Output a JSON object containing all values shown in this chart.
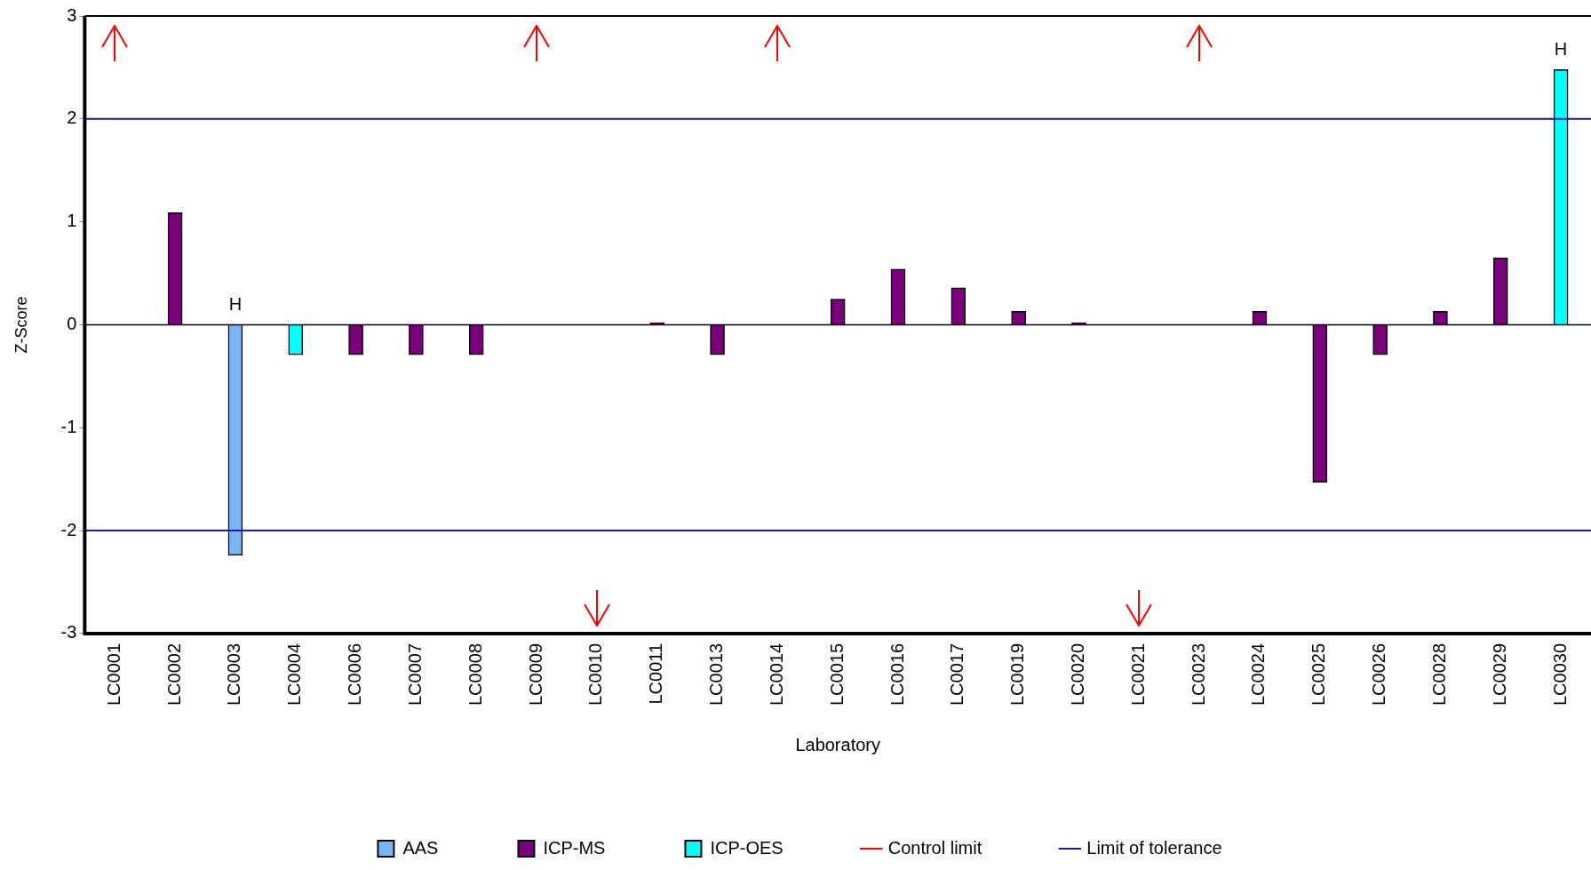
{
  "chart_data": {
    "type": "bar",
    "xlabel": "Laboratory",
    "ylabel": "Z-Score",
    "categories": [
      "LC0001",
      "LC0002",
      "LC0003",
      "LC0004",
      "LC0006",
      "LC0007",
      "LC0008",
      "LC0009",
      "LC0010",
      "LC0011",
      "LC0013",
      "LC0014",
      "LC0015",
      "LC0016",
      "LC0017",
      "LC0019",
      "LC0020",
      "LC0021",
      "LC0023",
      "LC0024",
      "LC0025",
      "LC0026",
      "LC0028",
      "LC0029",
      "LC0030"
    ],
    "series": [
      {
        "name": "AAS",
        "color": "#78b4f8",
        "values": [
          null,
          null,
          -2.24,
          null,
          null,
          null,
          null,
          null,
          null,
          null,
          null,
          null,
          null,
          null,
          null,
          null,
          null,
          null,
          null,
          null,
          null,
          null,
          null,
          null,
          null
        ],
        "value_labels": [
          null,
          null,
          "H",
          null,
          null,
          null,
          null,
          null,
          null,
          null,
          null,
          null,
          null,
          null,
          null,
          null,
          null,
          null,
          null,
          null,
          null,
          null,
          null,
          null,
          null
        ]
      },
      {
        "name": "ICP-MS",
        "color": "#7b007b",
        "values": [
          null,
          1.09,
          null,
          null,
          -0.29,
          -0.29,
          -0.29,
          null,
          null,
          0.02,
          -0.29,
          null,
          0.25,
          0.54,
          0.36,
          0.13,
          0.02,
          null,
          null,
          0.13,
          -1.53,
          -0.29,
          0.13,
          0.65,
          null
        ]
      },
      {
        "name": "ICP-OES",
        "color": "#00ffff",
        "values": [
          null,
          null,
          null,
          -0.29,
          null,
          null,
          null,
          null,
          null,
          null,
          null,
          null,
          null,
          null,
          null,
          null,
          null,
          null,
          null,
          null,
          null,
          null,
          null,
          null,
          2.48
        ],
        "value_labels": [
          null,
          null,
          null,
          null,
          null,
          null,
          null,
          null,
          null,
          null,
          null,
          null,
          null,
          null,
          null,
          null,
          null,
          null,
          null,
          null,
          null,
          null,
          null,
          null,
          "H"
        ]
      },
      {
        "name": "Control limit",
        "type": "line",
        "color": "#ff0000",
        "values": [
          null,
          null,
          null,
          null,
          null,
          null,
          null,
          null,
          null,
          null,
          null,
          null,
          null,
          null,
          null,
          null,
          null,
          null,
          null,
          null,
          null,
          null,
          null,
          null,
          null
        ]
      }
    ],
    "ref_lines": [
      {
        "axis": "y",
        "value": 2,
        "label": "Limit of tolerance",
        "color": "#1a1a9a"
      },
      {
        "axis": "y",
        "value": -2,
        "color": "#1a1a9a"
      }
    ],
    "ylim": [
      -3,
      3
    ],
    "yticks": [
      -3,
      -2,
      -1,
      0,
      1,
      2,
      3
    ],
    "grid": false,
    "legend": "bottom"
  }
}
